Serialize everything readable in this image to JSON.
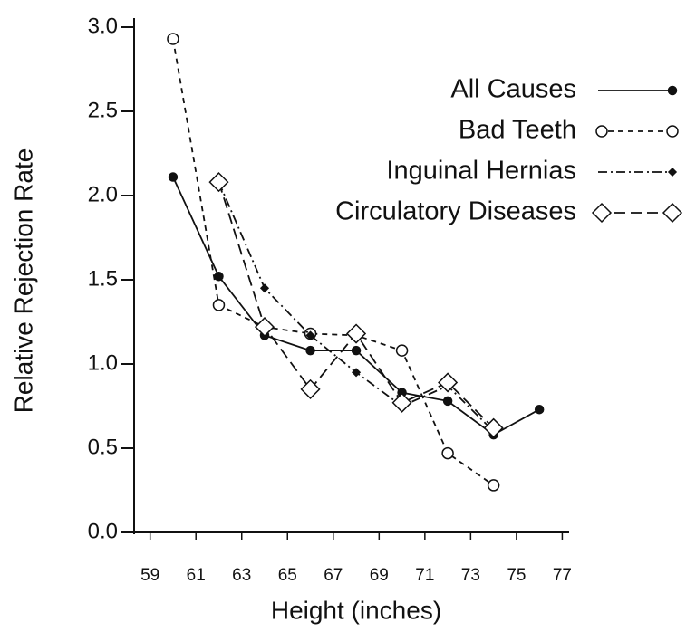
{
  "chart_data": {
    "type": "line",
    "x_label": "Height (inches)",
    "y_label": "Relative Rejection Rate",
    "x": [
      60,
      62,
      64,
      66,
      68,
      70,
      72,
      74,
      76
    ],
    "series": [
      {
        "name": "All Causes",
        "color": "#111111",
        "dash": "solid",
        "marker": "filled-circle",
        "values": [
          2.11,
          1.52,
          1.17,
          1.08,
          1.08,
          0.83,
          0.78,
          0.58,
          0.73
        ]
      },
      {
        "name": "Bad Teeth",
        "color": "#111111",
        "dash": "dashed",
        "marker": "open-circle",
        "values": [
          2.93,
          1.35,
          1.22,
          1.18,
          1.17,
          1.08,
          0.47,
          0.28,
          null
        ]
      },
      {
        "name": "Inguinal Hernias",
        "color": "#111111",
        "dash": "dashdot",
        "marker": "filled-diamond",
        "values": [
          null,
          2.08,
          1.45,
          1.17,
          0.95,
          0.75,
          0.87,
          0.6,
          null
        ]
      },
      {
        "name": "Circulatory Diseases",
        "color": "#111111",
        "dash": "longdash",
        "marker": "open-diamond",
        "values": [
          null,
          2.08,
          1.22,
          0.85,
          1.18,
          0.77,
          0.89,
          0.62,
          null
        ]
      }
    ],
    "xlim": [
      58.3,
      77.3
    ],
    "xticks": [
      59,
      61,
      63,
      65,
      67,
      69,
      71,
      73,
      75,
      77
    ],
    "ylim": [
      0,
      3
    ],
    "yticks": [
      {
        "value": 0,
        "label": "0.0"
      },
      0.5,
      {
        "value": 1,
        "label": "1.0"
      },
      1.5,
      {
        "value": 2,
        "label": "2.0"
      },
      2.5,
      {
        "value": 3,
        "label": "3.0"
      }
    ],
    "legend": "upper-right",
    "grid": false
  }
}
